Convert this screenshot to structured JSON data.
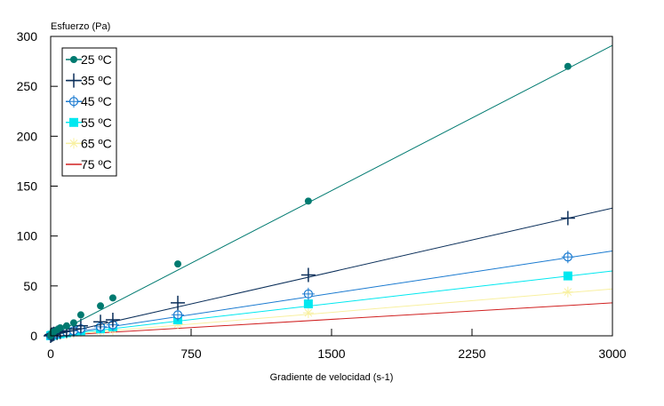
{
  "chart_data": {
    "type": "scatter",
    "ylabel": "Esfuerzo (Pa)",
    "xlabel": "Gradiente de velocidad (s-1)",
    "xlim": [
      0,
      3000
    ],
    "ylim": [
      0,
      300
    ],
    "xticks": [
      "0",
      "750",
      "1500",
      "2250",
      "3000"
    ],
    "yticks": [
      "0",
      "50",
      "100",
      "150",
      "200",
      "250",
      "300"
    ],
    "xtick_values": [
      0,
      750,
      1500,
      2250,
      3000
    ],
    "ytick_values": [
      0,
      50,
      100,
      150,
      200,
      250,
      300
    ],
    "grid": false,
    "legend_position": "top-left",
    "x": [
      0,
      5,
      10,
      17,
      34,
      51,
      85,
      123,
      161,
      266,
      332,
      679,
      1376,
      2762
    ],
    "series": [
      {
        "name": "25 ºC",
        "color": "#007a70",
        "marker": "circle",
        "values": [
          0,
          2,
          3,
          4,
          6,
          8,
          10,
          13,
          21,
          30,
          38,
          72,
          135,
          270
        ],
        "fit": [
          0,
          291
        ]
      },
      {
        "name": "35 ºC",
        "color": "#0b2f5a",
        "marker": "plus",
        "values": [
          0,
          1,
          1.5,
          2,
          3,
          4,
          5,
          7,
          10,
          14,
          16,
          33,
          61,
          118
        ],
        "fit": [
          0,
          128
        ]
      },
      {
        "name": "45 ºC",
        "color": "#1a7ad0",
        "marker": "star-circle",
        "values": [
          0,
          0.5,
          1,
          1.5,
          2,
          3,
          4,
          5,
          7,
          9,
          11,
          21,
          42,
          79
        ],
        "fit": [
          0,
          85
        ]
      },
      {
        "name": "55 ºC",
        "color": "#00e8f0",
        "marker": "square",
        "values": [
          0,
          0.5,
          0.8,
          1,
          1.5,
          2,
          3,
          4,
          5,
          7,
          9,
          16,
          32,
          60
        ],
        "fit": [
          0,
          65
        ]
      },
      {
        "name": "65 ºC",
        "color": "#f8f0a0",
        "marker": "star",
        "values": [
          0,
          0.3,
          0.5,
          0.8,
          1,
          1.5,
          2,
          3,
          4,
          5,
          6,
          12,
          23,
          44
        ],
        "fit": [
          0,
          47
        ]
      },
      {
        "name": "75 ºC",
        "color": "#d02020",
        "marker": "none",
        "values": [],
        "fit": [
          0,
          33
        ]
      }
    ]
  }
}
